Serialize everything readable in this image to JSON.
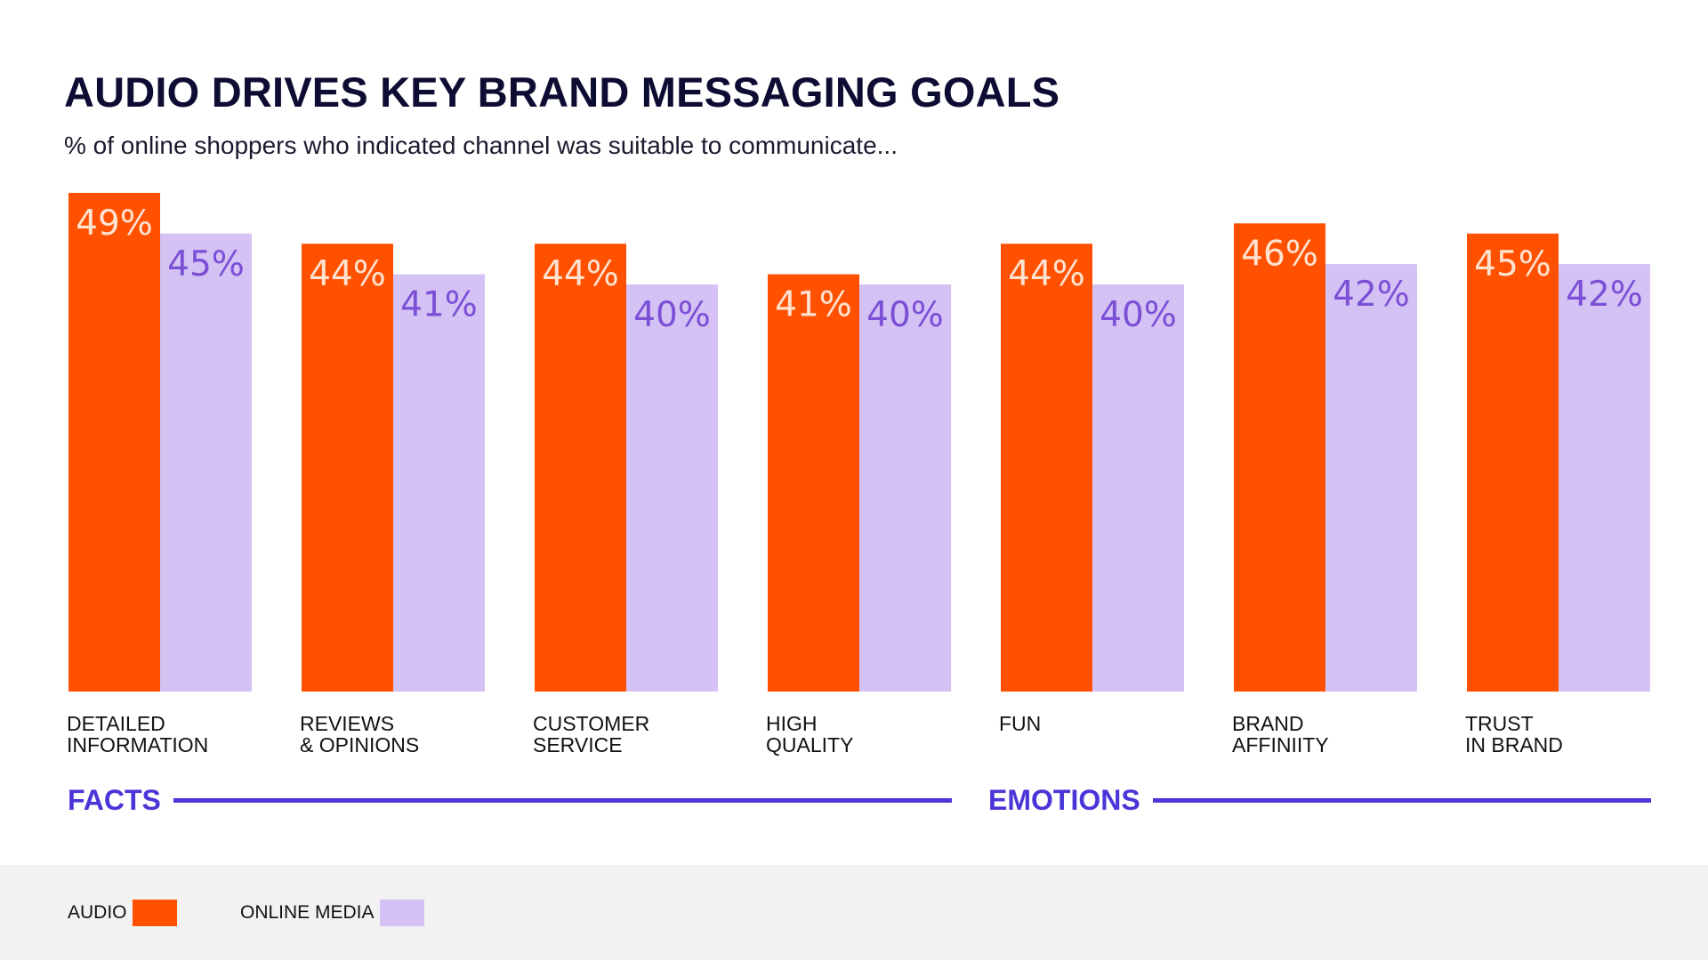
{
  "title": "AUDIO DRIVES KEY BRAND MESSAGING GOALS",
  "subtitle": "% of online shoppers who indicated channel was suitable to communicate...",
  "colors": {
    "audio": "#ff5100",
    "online_media": "#d4c2f5",
    "audio_label": "#ffe2d0",
    "online_media_label": "#7b4fd6",
    "accent": "#4a36d8"
  },
  "sections": [
    {
      "label": "FACTS"
    },
    {
      "label": "EMOTIONS"
    }
  ],
  "legend": [
    {
      "label": "AUDIO"
    },
    {
      "label": "ONLINE MEDIA"
    }
  ],
  "chart_data": {
    "type": "bar",
    "title": "AUDIO DRIVES KEY BRAND MESSAGING GOALS",
    "categories": [
      [
        "DETAILED",
        "INFORMATION"
      ],
      [
        "REVIEWS",
        "& OPINIONS"
      ],
      [
        "CUSTOMER",
        "SERVICE"
      ],
      [
        "HIGH",
        "QUALITY"
      ],
      [
        "FUN"
      ],
      [
        "BRAND",
        "AFFINIITY"
      ],
      [
        "TRUST",
        "IN BRAND"
      ]
    ],
    "series": [
      {
        "name": "AUDIO",
        "values": [
          49,
          44,
          44,
          41,
          44,
          46,
          45
        ]
      },
      {
        "name": "ONLINE MEDIA",
        "values": [
          45,
          41,
          40,
          40,
          40,
          42,
          42
        ]
      }
    ],
    "value_suffix": "%",
    "ylim": [
      0,
      49
    ],
    "grid": false,
    "legend_position": "bottom-left"
  }
}
